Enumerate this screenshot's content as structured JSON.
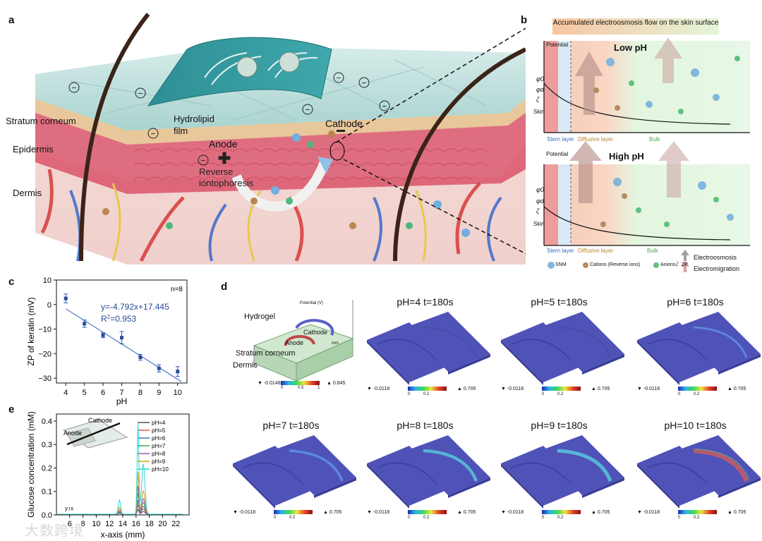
{
  "panel_labels": {
    "a": "a",
    "b": "b",
    "c": "c",
    "d": "d",
    "e": "e"
  },
  "panel_a": {
    "layers": [
      "Stratum corneum",
      "Epidermis",
      "Dermis"
    ],
    "labels": {
      "hydrolipid": "Hydrolipid film",
      "anode": "Anode",
      "cathode": "Cathode",
      "reverse": "Reverse iontophoresis"
    },
    "charge_symbol": "−"
  },
  "panel_b": {
    "banner": "Accumulated electroosmosis flow on the skin surface",
    "low": {
      "title": "Low pH",
      "ylabel": "Potential",
      "phi0": "φ0",
      "phid": "φd",
      "zeta": "ζ",
      "skin": "Skin",
      "stern": "Stern layer",
      "diffusive": "Diffusive layer",
      "bulk": "Bulk"
    },
    "high": {
      "title": "High pH",
      "ylabel": "Potential",
      "phi0": "φ0",
      "phid": "φd",
      "zeta": "ζ",
      "skin": "Skin",
      "stern": "Stern layer",
      "diffusive": "Diffusive layer",
      "bulk": "Bulk"
    },
    "legend": {
      "snm": "SNM",
      "cations": "Cations (Reverse ions)",
      "anions": "Anions",
      "zp": "ZP",
      "zp_symbol": "ζ",
      "electroosmosis": "Electroosmosis",
      "electromigration": "Electromigration"
    }
  },
  "chart_data": [
    {
      "id": "panel-c",
      "type": "scatter",
      "x": [
        4,
        5,
        6,
        7,
        8,
        9,
        10
      ],
      "y": [
        2.5,
        -7.8,
        -12.5,
        -13.5,
        -21.5,
        -26.0,
        -27.3
      ],
      "yerr": [
        1.8,
        1.5,
        1.0,
        2.5,
        1.2,
        1.5,
        2.0
      ],
      "fit": {
        "slope": -4.792,
        "intercept": 17.445,
        "equation": "y=-4.792x+17.445",
        "r2_prefix": "R",
        "r2_sup": "2",
        "r2_value": "=0.953"
      },
      "annotation": "n=8",
      "xlabel": "pH",
      "ylabel": "ZP of keratin (mV)",
      "xlim": [
        3.5,
        10.5
      ],
      "ylim": [
        -32,
        10
      ],
      "xticks": [
        4,
        5,
        6,
        7,
        8,
        9,
        10
      ],
      "yticks": [
        10,
        0,
        -10,
        -20,
        -30
      ]
    },
    {
      "id": "panel-e",
      "type": "line",
      "xlabel": "x-axis (mm)",
      "ylabel": "Glucose concentration (mM)",
      "xlim": [
        4,
        24
      ],
      "ylim": [
        0,
        0.43
      ],
      "xticks": [
        6,
        8,
        10,
        12,
        14,
        16,
        18,
        20,
        22
      ],
      "yticks": [
        0.0,
        0.1,
        0.2,
        0.3,
        0.4
      ],
      "series": [
        {
          "name": "pH=4",
          "color": "#555555",
          "peak1": 0.004,
          "peak2": 0.02
        },
        {
          "name": "pH=5",
          "color": "#d9534f",
          "peak1": 0.006,
          "peak2": 0.04
        },
        {
          "name": "pH=6",
          "color": "#4a6fd8",
          "peak1": 0.008,
          "peak2": 0.06
        },
        {
          "name": "pH=7",
          "color": "#3aa655",
          "peak1": 0.012,
          "peak2": 0.09
        },
        {
          "name": "pH=8",
          "color": "#9b59b6",
          "peak1": 0.018,
          "peak2": 0.12
        },
        {
          "name": "pH=9",
          "color": "#d4a017",
          "peak1": 0.03,
          "peak2": 0.18
        },
        {
          "name": "pH=10",
          "color": "#2ed6d6",
          "peak1": 0.06,
          "peak2": 0.39
        }
      ],
      "inset": {
        "anode": "Anode",
        "cathode": "Cathode"
      }
    }
  ],
  "panel_d": {
    "model": {
      "hydrogel": "Hydrogel",
      "stratum": "Stratum corneum",
      "dermis": "Dermis",
      "anode": "Anode",
      "cathode": "Cathode",
      "potential_label": "Potential (V)",
      "mm": "mm",
      "min": "-0.0148",
      "max": "0.845",
      "scale0": "0",
      "scale1": "0.5",
      "scale2": "1"
    },
    "sims": [
      {
        "title": "pH=4 t=180s",
        "intensity": 0.0
      },
      {
        "title": "pH=5 t=180s",
        "intensity": 0.05
      },
      {
        "title": "pH=6 t=180s",
        "intensity": 0.15
      },
      {
        "title": "pH=7 t=180s",
        "intensity": 0.3
      },
      {
        "title": "pH=8 t=180s",
        "intensity": 0.45
      },
      {
        "title": "pH=9 t=180s",
        "intensity": 0.6
      },
      {
        "title": "pH=10 t=180s",
        "intensity": 0.9
      }
    ],
    "sim_scale": {
      "min": "-0.0118",
      "max": "0.705",
      "s0": "0",
      "s1": "0.2"
    }
  },
  "watermark": "大数跨境"
}
